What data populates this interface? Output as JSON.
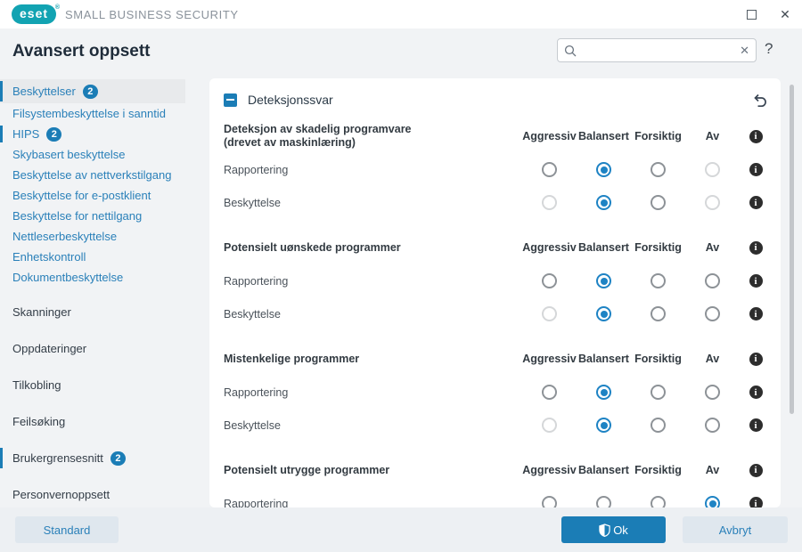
{
  "titlebar": {
    "brand": "eset",
    "registered_mark": "®",
    "product": "SMALL BUSINESS SECURITY"
  },
  "header": {
    "title": "Avansert oppsett"
  },
  "search": {
    "value": "",
    "placeholder": ""
  },
  "icons": {
    "clear": "✕",
    "close": "✕",
    "help": "?",
    "info": "i"
  },
  "sidebar": {
    "items": [
      {
        "label": "Beskyttelser",
        "badge": "2",
        "level": "top-first",
        "selected": true,
        "marker": true
      },
      {
        "label": "Filsystembeskyttelse i sanntid",
        "level": "sub"
      },
      {
        "label": "HIPS",
        "badge": "2",
        "level": "sub",
        "marker": true
      },
      {
        "label": "Skybasert beskyttelse",
        "level": "sub"
      },
      {
        "label": "Beskyttelse av nettverkstilgang",
        "level": "sub"
      },
      {
        "label": "Beskyttelse for e-postklient",
        "level": "sub"
      },
      {
        "label": "Beskyttelse for nettilgang",
        "level": "sub"
      },
      {
        "label": "Nettleserbeskyttelse",
        "level": "sub"
      },
      {
        "label": "Enhetskontroll",
        "level": "sub"
      },
      {
        "label": "Dokumentbeskyttelse",
        "level": "sub"
      },
      {
        "label": "Skanninger",
        "level": "top"
      },
      {
        "label": "Oppdateringer",
        "level": "top"
      },
      {
        "label": "Tilkobling",
        "level": "top"
      },
      {
        "label": "Feilsøking",
        "level": "top"
      },
      {
        "label": "Brukergrensesnitt",
        "badge": "2",
        "level": "top",
        "marker": true
      },
      {
        "label": "Personvernoppsett",
        "level": "top"
      }
    ]
  },
  "panel": {
    "title": "Deteksjonssvar",
    "columns": [
      "Aggressiv",
      "Balansert",
      "Forsiktig",
      "Av"
    ],
    "groups": [
      {
        "title": "Deteksjon av skadelig programvare",
        "subtitle": "(drevet av maskinlæring)",
        "rows": [
          {
            "label": "Rapportering",
            "states": [
              "off",
              "selected",
              "off",
              "disabled"
            ]
          },
          {
            "label": "Beskyttelse",
            "states": [
              "disabled",
              "selected",
              "off",
              "disabled"
            ]
          }
        ]
      },
      {
        "title": "Potensielt uønskede programmer",
        "rows": [
          {
            "label": "Rapportering",
            "states": [
              "off",
              "selected",
              "off",
              "off"
            ]
          },
          {
            "label": "Beskyttelse",
            "states": [
              "disabled",
              "selected",
              "off",
              "off"
            ]
          }
        ]
      },
      {
        "title": "Mistenkelige programmer",
        "rows": [
          {
            "label": "Rapportering",
            "states": [
              "off",
              "selected",
              "off",
              "off"
            ]
          },
          {
            "label": "Beskyttelse",
            "states": [
              "disabled",
              "selected",
              "off",
              "off"
            ]
          }
        ]
      },
      {
        "title": "Potensielt utrygge programmer",
        "rows": [
          {
            "label": "Rapportering",
            "states": [
              "off",
              "off",
              "off",
              "selected"
            ]
          }
        ]
      }
    ]
  },
  "footer": {
    "standard": "Standard",
    "ok": "Ok",
    "cancel": "Avbryt"
  },
  "colors": {
    "accent_blue": "#1b7db6",
    "radio_blue": "#1e83c4",
    "brand_teal": "#12a3b2",
    "link_blue": "#2a80b9",
    "dark_text": "#2b3a47"
  }
}
